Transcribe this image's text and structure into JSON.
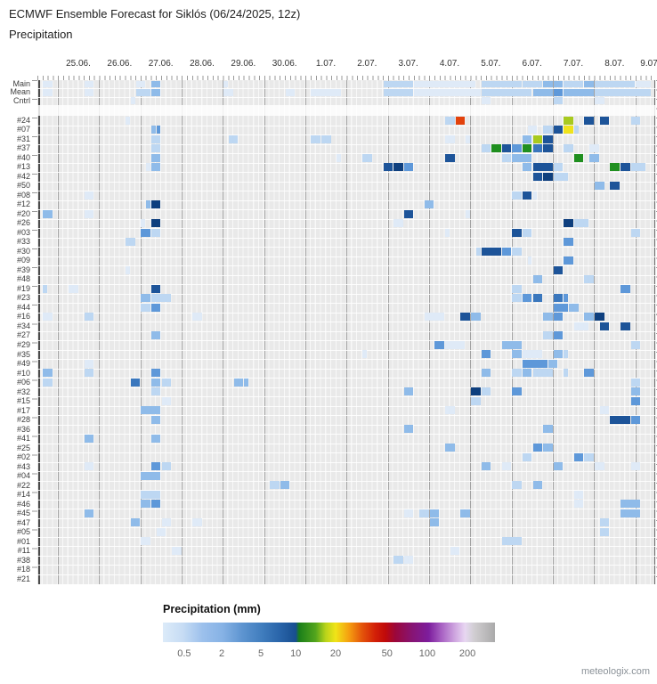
{
  "header": {
    "title": "ECMWF Ensemble Forecast for Siklós (06/24/2025, 12z)",
    "subtitle": "Precipitation"
  },
  "watermark": "meteologix.com",
  "chart_data": {
    "type": "heatmap",
    "title": "ECMWF Ensemble Forecast for Siklós (06/24/2025, 12z)",
    "subtitle": "Precipitation",
    "x_tick_labels": [
      "25.06.",
      "26.06.",
      "27.06.",
      "28.06.",
      "29.06.",
      "30.06.",
      "1.07.",
      "2.07.",
      "3.07.",
      "4.07.",
      "5.07.",
      "6.07.",
      "7.07.",
      "8.07.",
      "9.07."
    ],
    "rows": [
      "Main",
      "Mean",
      "Cntrl",
      "#24",
      "#07",
      "#31",
      "#37",
      "#40",
      "#13",
      "#42",
      "#50",
      "#08",
      "#12",
      "#20",
      "#26",
      "#03",
      "#33",
      "#30",
      "#09",
      "#39",
      "#48",
      "#19",
      "#23",
      "#44",
      "#16",
      "#34",
      "#27",
      "#29",
      "#35",
      "#49",
      "#10",
      "#06",
      "#32",
      "#15",
      "#17",
      "#28",
      "#36",
      "#41",
      "#25",
      "#02",
      "#43",
      "#04",
      "#22",
      "#14",
      "#46",
      "#45",
      "#47",
      "#05",
      "#01",
      "#11",
      "#38",
      "#18",
      "#21"
    ],
    "layout": {
      "columns_total": 120,
      "columns_per_day": 8,
      "hours_per_column": 3,
      "grid": "vertical day lines, striped 3h columns",
      "legend_position": "bottom"
    },
    "palette": {
      "f": "#dfeaf7",
      "l": "#bdd7f2",
      "m": "#8fbbe9",
      "M": "#5e98d9",
      "D": "#3a77bd",
      "N": "#1d5499",
      "X": "#0e3f7e",
      "g": "#1f8f1f",
      "Y": "#a8ca1f",
      "y": "#efe31c",
      "r": "#e2410b"
    },
    "cells": [
      [
        0,
        1,
        2,
        "f"
      ],
      [
        0,
        9,
        2,
        "f"
      ],
      [
        0,
        19,
        2,
        "f"
      ],
      [
        0,
        22,
        2,
        "m"
      ],
      [
        0,
        36,
        1,
        "f"
      ],
      [
        0,
        67,
        6,
        "l"
      ],
      [
        0,
        73,
        12,
        "f"
      ],
      [
        0,
        86,
        8,
        "l"
      ],
      [
        0,
        94,
        4,
        "l"
      ],
      [
        0,
        98,
        2,
        "m"
      ],
      [
        0,
        100,
        2,
        "m"
      ],
      [
        0,
        102,
        4,
        "l"
      ],
      [
        0,
        106,
        2,
        "m"
      ],
      [
        0,
        108,
        8,
        "l"
      ],
      [
        0,
        116,
        3,
        "f"
      ],
      [
        1,
        1,
        2,
        "f"
      ],
      [
        1,
        9,
        2,
        "f"
      ],
      [
        1,
        19,
        3,
        "l"
      ],
      [
        1,
        22,
        2,
        "m"
      ],
      [
        1,
        36,
        2,
        "f"
      ],
      [
        1,
        48,
        2,
        "f"
      ],
      [
        1,
        53,
        6,
        "f"
      ],
      [
        1,
        67,
        6,
        "l"
      ],
      [
        1,
        73,
        13,
        "f"
      ],
      [
        1,
        86,
        10,
        "l"
      ],
      [
        1,
        96,
        4,
        "m"
      ],
      [
        1,
        100,
        2,
        "M"
      ],
      [
        1,
        102,
        6,
        "m"
      ],
      [
        1,
        108,
        11,
        "l"
      ],
      [
        2,
        18,
        1,
        "f"
      ],
      [
        2,
        86,
        2,
        "f"
      ],
      [
        2,
        100,
        2,
        "l"
      ],
      [
        2,
        108,
        2,
        "f"
      ],
      [
        3,
        17,
        1,
        "f"
      ],
      [
        3,
        79,
        2,
        "l"
      ],
      [
        3,
        81,
        2,
        "r"
      ],
      [
        3,
        102,
        2,
        "Y"
      ],
      [
        3,
        106,
        2,
        "N"
      ],
      [
        3,
        109,
        2,
        "N"
      ],
      [
        3,
        115,
        2,
        "l"
      ],
      [
        4,
        22,
        1,
        "m"
      ],
      [
        4,
        23,
        1,
        "M"
      ],
      [
        4,
        95,
        2,
        "f"
      ],
      [
        4,
        98,
        2,
        "l"
      ],
      [
        4,
        100,
        2,
        "N"
      ],
      [
        4,
        102,
        2,
        "y"
      ],
      [
        4,
        104,
        1,
        "l"
      ],
      [
        5,
        22,
        2,
        "l"
      ],
      [
        5,
        37,
        2,
        "l"
      ],
      [
        5,
        53,
        2,
        "l"
      ],
      [
        5,
        55,
        2,
        "l"
      ],
      [
        5,
        79,
        2,
        "f"
      ],
      [
        5,
        83,
        1,
        "f"
      ],
      [
        5,
        94,
        2,
        "m"
      ],
      [
        5,
        96,
        2,
        "Y"
      ],
      [
        5,
        98,
        2,
        "N"
      ],
      [
        6,
        22,
        2,
        "l"
      ],
      [
        6,
        86,
        2,
        "l"
      ],
      [
        6,
        88,
        2,
        "g"
      ],
      [
        6,
        90,
        2,
        "N"
      ],
      [
        6,
        92,
        2,
        "M"
      ],
      [
        6,
        94,
        2,
        "g"
      ],
      [
        6,
        96,
        2,
        "D"
      ],
      [
        6,
        98,
        2,
        "N"
      ],
      [
        6,
        102,
        2,
        "l"
      ],
      [
        6,
        107,
        2,
        "f"
      ],
      [
        7,
        22,
        2,
        "m"
      ],
      [
        7,
        58,
        1,
        "f"
      ],
      [
        7,
        63,
        2,
        "l"
      ],
      [
        7,
        79,
        2,
        "N"
      ],
      [
        7,
        90,
        2,
        "l"
      ],
      [
        7,
        92,
        4,
        "m"
      ],
      [
        7,
        104,
        2,
        "g"
      ],
      [
        7,
        107,
        2,
        "m"
      ],
      [
        8,
        21,
        1,
        "f"
      ],
      [
        8,
        22,
        2,
        "m"
      ],
      [
        8,
        67,
        2,
        "N"
      ],
      [
        8,
        69,
        2,
        "X"
      ],
      [
        8,
        71,
        2,
        "M"
      ],
      [
        8,
        94,
        2,
        "m"
      ],
      [
        8,
        96,
        4,
        "N"
      ],
      [
        8,
        100,
        2,
        "l"
      ],
      [
        8,
        111,
        2,
        "g"
      ],
      [
        8,
        113,
        2,
        "N"
      ],
      [
        8,
        115,
        3,
        "l"
      ],
      [
        9,
        96,
        2,
        "N"
      ],
      [
        9,
        98,
        2,
        "X"
      ],
      [
        9,
        100,
        3,
        "l"
      ],
      [
        10,
        108,
        2,
        "m"
      ],
      [
        10,
        111,
        2,
        "N"
      ],
      [
        11,
        9,
        2,
        "f"
      ],
      [
        11,
        92,
        2,
        "l"
      ],
      [
        11,
        94,
        2,
        "N"
      ],
      [
        11,
        96,
        1,
        "f"
      ],
      [
        12,
        21,
        1,
        "m"
      ],
      [
        12,
        22,
        2,
        "X"
      ],
      [
        12,
        75,
        2,
        "m"
      ],
      [
        13,
        1,
        2,
        "m"
      ],
      [
        13,
        9,
        2,
        "f"
      ],
      [
        13,
        71,
        2,
        "N"
      ],
      [
        13,
        83,
        1,
        "f"
      ],
      [
        14,
        20,
        1,
        "f"
      ],
      [
        14,
        22,
        2,
        "X"
      ],
      [
        14,
        69,
        2,
        "f"
      ],
      [
        14,
        102,
        2,
        "X"
      ],
      [
        14,
        104,
        3,
        "l"
      ],
      [
        15,
        20,
        2,
        "M"
      ],
      [
        15,
        22,
        2,
        "l"
      ],
      [
        15,
        79,
        1,
        "f"
      ],
      [
        15,
        92,
        2,
        "N"
      ],
      [
        15,
        94,
        2,
        "l"
      ],
      [
        15,
        115,
        2,
        "l"
      ],
      [
        16,
        17,
        2,
        "l"
      ],
      [
        16,
        102,
        2,
        "M"
      ],
      [
        17,
        85,
        1,
        "l"
      ],
      [
        17,
        86,
        4,
        "N"
      ],
      [
        17,
        90,
        2,
        "M"
      ],
      [
        17,
        92,
        2,
        "l"
      ],
      [
        18,
        95,
        1,
        "f"
      ],
      [
        18,
        102,
        2,
        "M"
      ],
      [
        19,
        17,
        1,
        "f"
      ],
      [
        19,
        100,
        2,
        "N"
      ],
      [
        20,
        96,
        2,
        "m"
      ],
      [
        20,
        106,
        2,
        "l"
      ],
      [
        21,
        1,
        1,
        "l"
      ],
      [
        21,
        6,
        2,
        "f"
      ],
      [
        21,
        22,
        2,
        "N"
      ],
      [
        21,
        92,
        2,
        "l"
      ],
      [
        21,
        113,
        2,
        "M"
      ],
      [
        22,
        20,
        2,
        "m"
      ],
      [
        22,
        22,
        4,
        "l"
      ],
      [
        22,
        92,
        2,
        "l"
      ],
      [
        22,
        94,
        2,
        "M"
      ],
      [
        22,
        96,
        2,
        "D"
      ],
      [
        22,
        100,
        2,
        "D"
      ],
      [
        22,
        102,
        1,
        "M"
      ],
      [
        23,
        20,
        2,
        "l"
      ],
      [
        23,
        22,
        2,
        "M"
      ],
      [
        23,
        100,
        3,
        "M"
      ],
      [
        23,
        103,
        2,
        "m"
      ],
      [
        24,
        1,
        2,
        "f"
      ],
      [
        24,
        9,
        2,
        "l"
      ],
      [
        24,
        30,
        2,
        "f"
      ],
      [
        24,
        75,
        4,
        "f"
      ],
      [
        24,
        82,
        2,
        "N"
      ],
      [
        24,
        84,
        2,
        "m"
      ],
      [
        24,
        98,
        2,
        "m"
      ],
      [
        24,
        100,
        2,
        "M"
      ],
      [
        24,
        106,
        2,
        "m"
      ],
      [
        24,
        108,
        2,
        "X"
      ],
      [
        25,
        104,
        3,
        "f"
      ],
      [
        25,
        109,
        2,
        "N"
      ],
      [
        25,
        113,
        2,
        "N"
      ],
      [
        26,
        22,
        2,
        "m"
      ],
      [
        26,
        98,
        2,
        "l"
      ],
      [
        26,
        100,
        2,
        "M"
      ],
      [
        27,
        77,
        2,
        "M"
      ],
      [
        27,
        79,
        4,
        "f"
      ],
      [
        27,
        90,
        4,
        "m"
      ],
      [
        27,
        115,
        2,
        "l"
      ],
      [
        28,
        63,
        1,
        "f"
      ],
      [
        28,
        86,
        2,
        "M"
      ],
      [
        28,
        92,
        2,
        "m"
      ],
      [
        28,
        94,
        4,
        "f"
      ],
      [
        28,
        100,
        2,
        "m"
      ],
      [
        28,
        102,
        1,
        "l"
      ],
      [
        29,
        9,
        2,
        "f"
      ],
      [
        29,
        94,
        5,
        "M"
      ],
      [
        29,
        99,
        2,
        "m"
      ],
      [
        30,
        1,
        2,
        "m"
      ],
      [
        30,
        9,
        2,
        "l"
      ],
      [
        30,
        22,
        2,
        "M"
      ],
      [
        30,
        86,
        2,
        "m"
      ],
      [
        30,
        92,
        2,
        "l"
      ],
      [
        30,
        94,
        2,
        "m"
      ],
      [
        30,
        96,
        4,
        "l"
      ],
      [
        30,
        102,
        1,
        "l"
      ],
      [
        30,
        106,
        2,
        "M"
      ],
      [
        31,
        1,
        2,
        "l"
      ],
      [
        31,
        18,
        2,
        "D"
      ],
      [
        31,
        22,
        2,
        "m"
      ],
      [
        31,
        24,
        2,
        "l"
      ],
      [
        31,
        38,
        2,
        "m"
      ],
      [
        31,
        40,
        1,
        "m"
      ],
      [
        31,
        115,
        2,
        "l"
      ],
      [
        32,
        22,
        2,
        "l"
      ],
      [
        32,
        71,
        2,
        "m"
      ],
      [
        32,
        84,
        2,
        "X"
      ],
      [
        32,
        86,
        2,
        "l"
      ],
      [
        32,
        92,
        2,
        "M"
      ],
      [
        32,
        115,
        2,
        "m"
      ],
      [
        33,
        24,
        2,
        "f"
      ],
      [
        33,
        84,
        2,
        "l"
      ],
      [
        33,
        115,
        2,
        "M"
      ],
      [
        34,
        20,
        4,
        "m"
      ],
      [
        34,
        79,
        2,
        "f"
      ],
      [
        34,
        109,
        2,
        "f"
      ],
      [
        35,
        22,
        2,
        "m"
      ],
      [
        35,
        111,
        4,
        "N"
      ],
      [
        35,
        115,
        2,
        "M"
      ],
      [
        36,
        71,
        2,
        "m"
      ],
      [
        36,
        98,
        2,
        "m"
      ],
      [
        37,
        9,
        2,
        "m"
      ],
      [
        37,
        22,
        2,
        "m"
      ],
      [
        38,
        79,
        2,
        "m"
      ],
      [
        38,
        96,
        2,
        "M"
      ],
      [
        38,
        98,
        2,
        "m"
      ],
      [
        39,
        94,
        2,
        "l"
      ],
      [
        39,
        104,
        2,
        "M"
      ],
      [
        39,
        106,
        2,
        "l"
      ],
      [
        40,
        9,
        2,
        "f"
      ],
      [
        40,
        22,
        2,
        "M"
      ],
      [
        40,
        24,
        2,
        "l"
      ],
      [
        40,
        86,
        2,
        "m"
      ],
      [
        40,
        90,
        2,
        "f"
      ],
      [
        40,
        100,
        2,
        "m"
      ],
      [
        40,
        108,
        2,
        "f"
      ],
      [
        40,
        115,
        2,
        "f"
      ],
      [
        41,
        20,
        4,
        "m"
      ],
      [
        42,
        45,
        2,
        "l"
      ],
      [
        42,
        47,
        2,
        "m"
      ],
      [
        42,
        92,
        2,
        "l"
      ],
      [
        42,
        96,
        2,
        "m"
      ],
      [
        43,
        20,
        4,
        "l"
      ],
      [
        43,
        104,
        2,
        "f"
      ],
      [
        44,
        20,
        2,
        "m"
      ],
      [
        44,
        22,
        2,
        "M"
      ],
      [
        44,
        104,
        2,
        "f"
      ],
      [
        44,
        113,
        4,
        "m"
      ],
      [
        45,
        9,
        2,
        "m"
      ],
      [
        45,
        71,
        2,
        "f"
      ],
      [
        45,
        74,
        2,
        "l"
      ],
      [
        45,
        76,
        2,
        "m"
      ],
      [
        45,
        82,
        2,
        "m"
      ],
      [
        45,
        113,
        4,
        "m"
      ],
      [
        46,
        18,
        2,
        "m"
      ],
      [
        46,
        24,
        2,
        "f"
      ],
      [
        46,
        30,
        2,
        "f"
      ],
      [
        46,
        76,
        2,
        "m"
      ],
      [
        46,
        109,
        2,
        "l"
      ],
      [
        47,
        23,
        2,
        "f"
      ],
      [
        47,
        109,
        2,
        "l"
      ],
      [
        48,
        20,
        2,
        "f"
      ],
      [
        48,
        90,
        4,
        "l"
      ],
      [
        49,
        26,
        2,
        "f"
      ],
      [
        49,
        80,
        2,
        "f"
      ],
      [
        50,
        69,
        2,
        "l"
      ],
      [
        50,
        71,
        2,
        "f"
      ]
    ],
    "legend": {
      "title": "Precipitation (mm)",
      "tick_labels": [
        "0.5",
        "2",
        "5",
        "10",
        "20",
        "50",
        "100",
        "200"
      ],
      "tick_positions_pct": [
        6.4,
        17.7,
        29.5,
        40,
        52,
        67.5,
        79.6,
        91.7
      ],
      "gradient_stops": [
        [
          "#dcebf9",
          0
        ],
        [
          "#c6dcf4",
          6
        ],
        [
          "#9cc0ec",
          12
        ],
        [
          "#86b2e5",
          18
        ],
        [
          "#5d94d0",
          24
        ],
        [
          "#3f7cbd",
          30
        ],
        [
          "#2a65aa",
          35
        ],
        [
          "#174e90",
          40
        ],
        [
          "#1a7e1a",
          41
        ],
        [
          "#53a51d",
          46
        ],
        [
          "#b8d31a",
          49
        ],
        [
          "#f0e418",
          52
        ],
        [
          "#f59f10",
          56
        ],
        [
          "#e4540b",
          60
        ],
        [
          "#d21f07",
          64
        ],
        [
          "#c00a0a",
          67
        ],
        [
          "#9b073b",
          70
        ],
        [
          "#871473",
          75
        ],
        [
          "#7d1d9d",
          80
        ],
        [
          "#a963c4",
          84
        ],
        [
          "#cfa7e0",
          88
        ],
        [
          "#e8d6f2",
          91
        ],
        [
          "#ded5e6",
          92
        ],
        [
          "#cfcccf",
          94
        ],
        [
          "#aaaaaa",
          100
        ]
      ]
    }
  }
}
